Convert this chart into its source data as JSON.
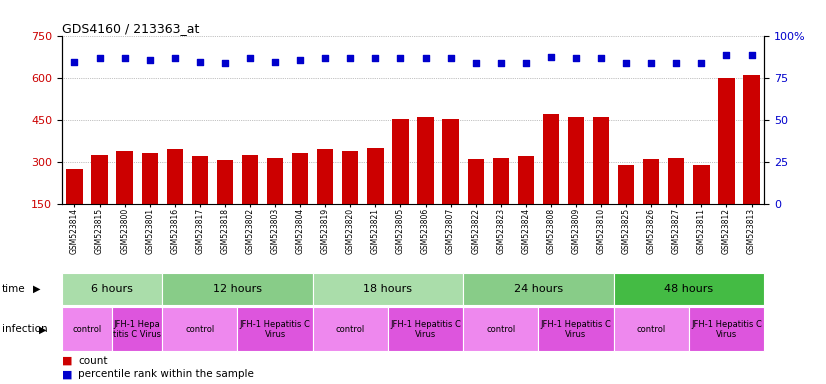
{
  "title": "GDS4160 / 213363_at",
  "samples": [
    "GSM523814",
    "GSM523815",
    "GSM523800",
    "GSM523801",
    "GSM523816",
    "GSM523817",
    "GSM523818",
    "GSM523802",
    "GSM523803",
    "GSM523804",
    "GSM523819",
    "GSM523820",
    "GSM523821",
    "GSM523805",
    "GSM523806",
    "GSM523807",
    "GSM523822",
    "GSM523823",
    "GSM523824",
    "GSM523808",
    "GSM523809",
    "GSM523810",
    "GSM523825",
    "GSM523826",
    "GSM523827",
    "GSM523811",
    "GSM523812",
    "GSM523813"
  ],
  "counts": [
    275,
    325,
    340,
    330,
    345,
    320,
    305,
    325,
    315,
    330,
    345,
    340,
    350,
    455,
    460,
    455,
    310,
    315,
    320,
    470,
    460,
    460,
    290,
    310,
    315,
    290,
    600,
    610
  ],
  "percentiles": [
    85,
    87,
    87,
    86,
    87,
    85,
    84,
    87,
    85,
    86,
    87,
    87,
    87,
    87,
    87,
    87,
    84,
    84,
    84,
    88,
    87,
    87,
    84,
    84,
    84,
    84,
    89,
    89
  ],
  "bar_color": "#cc0000",
  "dot_color": "#0000cc",
  "ylim_left": [
    150,
    750
  ],
  "ylim_right": [
    0,
    100
  ],
  "yticks_left": [
    150,
    300,
    450,
    600,
    750
  ],
  "yticks_right": [
    0,
    25,
    50,
    75,
    100
  ],
  "time_groups": [
    {
      "label": "6 hours",
      "start": 0,
      "end": 4,
      "color": "#aaddaa"
    },
    {
      "label": "12 hours",
      "start": 4,
      "end": 10,
      "color": "#88cc88"
    },
    {
      "label": "18 hours",
      "start": 10,
      "end": 16,
      "color": "#aaddaa"
    },
    {
      "label": "24 hours",
      "start": 16,
      "end": 22,
      "color": "#88cc88"
    },
    {
      "label": "48 hours",
      "start": 22,
      "end": 28,
      "color": "#44bb44"
    }
  ],
  "infection_groups": [
    {
      "label": "control",
      "start": 0,
      "end": 2,
      "color": "#ee88ee"
    },
    {
      "label": "JFH-1 Hepa\ntitis C Virus",
      "start": 2,
      "end": 4,
      "color": "#dd55dd"
    },
    {
      "label": "control",
      "start": 4,
      "end": 7,
      "color": "#ee88ee"
    },
    {
      "label": "JFH-1 Hepatitis C\nVirus",
      "start": 7,
      "end": 10,
      "color": "#dd55dd"
    },
    {
      "label": "control",
      "start": 10,
      "end": 13,
      "color": "#ee88ee"
    },
    {
      "label": "JFH-1 Hepatitis C\nVirus",
      "start": 13,
      "end": 16,
      "color": "#dd55dd"
    },
    {
      "label": "control",
      "start": 16,
      "end": 19,
      "color": "#ee88ee"
    },
    {
      "label": "JFH-1 Hepatitis C\nVirus",
      "start": 19,
      "end": 22,
      "color": "#dd55dd"
    },
    {
      "label": "control",
      "start": 22,
      "end": 25,
      "color": "#ee88ee"
    },
    {
      "label": "JFH-1 Hepatitis C\nVirus",
      "start": 25,
      "end": 28,
      "color": "#dd55dd"
    }
  ],
  "bg_color": "#ffffff",
  "grid_color": "#888888",
  "tick_color_left": "#cc0000",
  "tick_color_right": "#0000cc"
}
